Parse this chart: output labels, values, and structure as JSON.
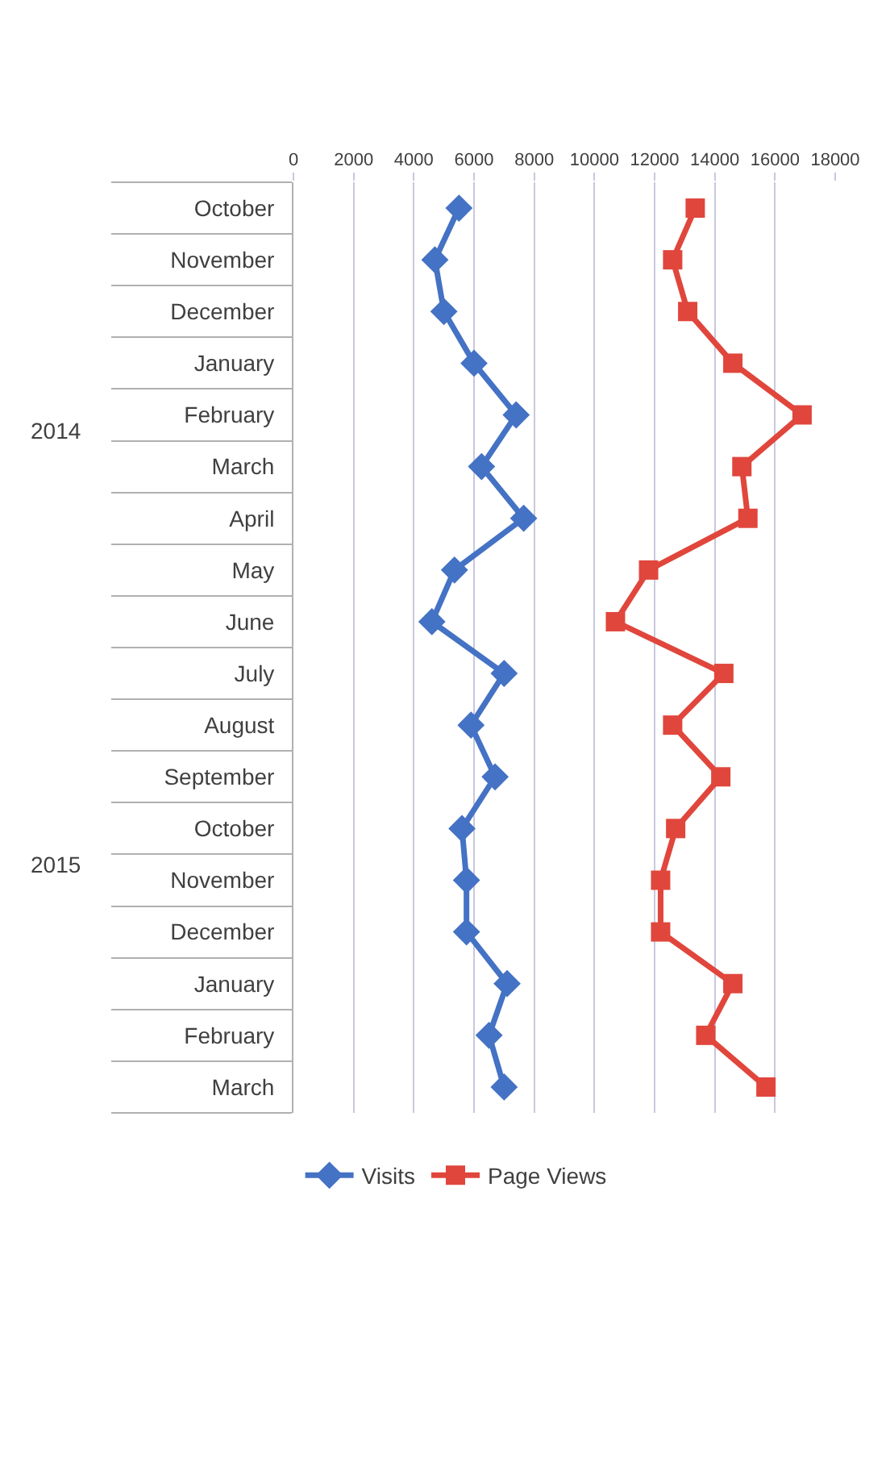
{
  "chart_data": {
    "type": "line",
    "orientation": "horizontal",
    "categories": [
      "October",
      "November",
      "December",
      "January",
      "February",
      "March",
      "April",
      "May",
      "June",
      "July",
      "August",
      "September",
      "October",
      "November",
      "December",
      "January",
      "February",
      "March"
    ],
    "series": [
      {
        "name": "Visits",
        "color": "#4472c4",
        "marker": "diamond",
        "values": [
          5500,
          4700,
          5000,
          6000,
          7400,
          6250,
          7650,
          5350,
          4600,
          7000,
          5900,
          6700,
          5600,
          5750,
          5750,
          7100,
          6500,
          7000
        ]
      },
      {
        "name": "Page Views",
        "color": "#e0463c",
        "marker": "square",
        "values": [
          13350,
          12600,
          13100,
          14600,
          16900,
          14900,
          15100,
          11800,
          10700,
          14300,
          12600,
          14200,
          12700,
          12200,
          12200,
          14600,
          13700,
          15700
        ]
      }
    ],
    "xlim": [
      0,
      18000
    ],
    "xticks": [
      0,
      2000,
      4000,
      6000,
      8000,
      10000,
      12000,
      14000,
      16000,
      18000
    ],
    "grid": "x",
    "legend": "bottom",
    "line_style": "solid",
    "annotations": [
      "2014",
      "2015"
    ]
  }
}
